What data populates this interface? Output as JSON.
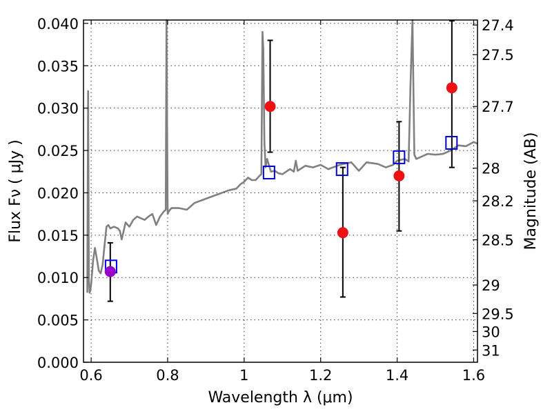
{
  "chart_data": {
    "type": "scatter",
    "title": "",
    "xlabel": "Wavelength  λ (μm)",
    "ylabel": "Flux  Fν  ( μJy )",
    "y2label": "Magnitude (AB)",
    "xlim": [
      0.58,
      1.61
    ],
    "ylim": [
      0.0,
      0.0404
    ],
    "grid": true,
    "x_ticks": [
      0.6,
      0.8,
      1.0,
      1.2,
      1.4,
      1.6
    ],
    "x_tick_labels": [
      "0.6",
      "0.8",
      "1",
      "1.2",
      "1.4",
      "1.6"
    ],
    "y_ticks": [
      0.0,
      0.005,
      0.01,
      0.015,
      0.02,
      0.025,
      0.03,
      0.035,
      0.04
    ],
    "y_tick_labels": [
      "0.000",
      "0.005",
      "0.010",
      "0.015",
      "0.020",
      "0.025",
      "0.030",
      "0.035",
      "0.040"
    ],
    "magnitude_ticks": [
      27.4,
      27.5,
      27.7,
      28,
      28.2,
      28.5,
      29,
      29.5,
      30,
      31
    ],
    "magnitude_tick_labels": [
      "27.4",
      "27.5",
      "27.7",
      "28",
      "28.2",
      "28.5",
      "29",
      "29.5",
      "30",
      "31"
    ],
    "colors": {
      "model": "#808080",
      "observed": "#ee1111",
      "observed_first": "#9900cc",
      "model_photometry": "#0000dd",
      "error_bar": "#000000"
    },
    "series": [
      {
        "kind": "line",
        "x": [
          0.59,
          0.592,
          0.594,
          0.596,
          0.598,
          0.6,
          0.605,
          0.61,
          0.615,
          0.62,
          0.625,
          0.63,
          0.635,
          0.64,
          0.645,
          0.65,
          0.66,
          0.67,
          0.675,
          0.68,
          0.69,
          0.7,
          0.71,
          0.72,
          0.73,
          0.74,
          0.75,
          0.76,
          0.77,
          0.78,
          0.79,
          0.795,
          0.797,
          0.8,
          0.803,
          0.806,
          0.81,
          0.83,
          0.85,
          0.87,
          0.9,
          0.93,
          0.96,
          0.98,
          0.99,
          1.0,
          1.01,
          1.02,
          1.03,
          1.04,
          1.045,
          1.048,
          1.05,
          1.053,
          1.056,
          1.06,
          1.07,
          1.08,
          1.09,
          1.1,
          1.12,
          1.13,
          1.135,
          1.14,
          1.16,
          1.18,
          1.2,
          1.22,
          1.25,
          1.28,
          1.3,
          1.32,
          1.35,
          1.37,
          1.39,
          1.4,
          1.42,
          1.43,
          1.435,
          1.44,
          1.445,
          1.45,
          1.46,
          1.48,
          1.5,
          1.52,
          1.54,
          1.56,
          1.58,
          1.6,
          1.61
        ],
        "y": [
          0.0082,
          0.032,
          0.0098,
          0.0082,
          0.0085,
          0.0092,
          0.012,
          0.0135,
          0.0122,
          0.0108,
          0.0105,
          0.0115,
          0.0138,
          0.016,
          0.0162,
          0.0158,
          0.016,
          0.0158,
          0.0155,
          0.0145,
          0.0165,
          0.016,
          0.0168,
          0.0172,
          0.017,
          0.0168,
          0.0172,
          0.0175,
          0.0162,
          0.0172,
          0.0178,
          0.018,
          0.0405,
          0.0175,
          0.0178,
          0.018,
          0.0182,
          0.0182,
          0.018,
          0.0188,
          0.0193,
          0.0198,
          0.0203,
          0.0205,
          0.021,
          0.0213,
          0.0218,
          0.0215,
          0.0215,
          0.022,
          0.0222,
          0.039,
          0.037,
          0.026,
          0.023,
          0.024,
          0.0225,
          0.0226,
          0.0223,
          0.0222,
          0.0228,
          0.0225,
          0.0238,
          0.0226,
          0.0232,
          0.023,
          0.0233,
          0.0228,
          0.0233,
          0.0236,
          0.0226,
          0.0236,
          0.0234,
          0.023,
          0.0233,
          0.0238,
          0.024,
          0.0237,
          0.033,
          0.0405,
          0.0245,
          0.024,
          0.0242,
          0.0246,
          0.0245,
          0.0246,
          0.025,
          0.0256,
          0.0255,
          0.026,
          0.0258
        ]
      },
      {
        "kind": "points-with-errors",
        "x": [
          0.65,
          1.068,
          1.258,
          1.405,
          1.543
        ],
        "y": [
          0.0107,
          0.0302,
          0.0153,
          0.022,
          0.0324
        ],
        "err_low": [
          0.0072,
          0.0248,
          0.0077,
          0.0155,
          0.023
        ],
        "err_high": [
          0.0141,
          0.038,
          0.023,
          0.0284,
          0.0403
        ]
      },
      {
        "kind": "open-squares",
        "x": [
          0.652,
          1.065,
          1.256,
          1.405,
          1.542
        ],
        "y": [
          0.0113,
          0.0224,
          0.0228,
          0.0242,
          0.0259
        ]
      }
    ]
  }
}
